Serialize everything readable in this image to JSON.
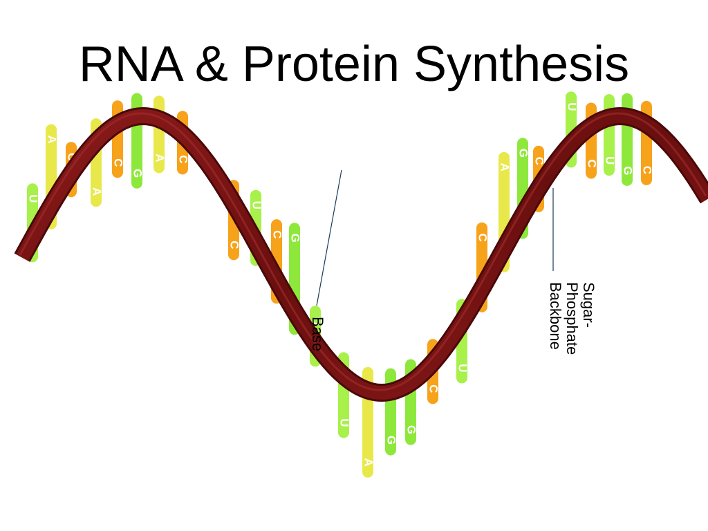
{
  "slide": {
    "title": "RNA & Protein Synthesis"
  },
  "diagram": {
    "strand_color": "#7a1414",
    "strand_edge_color": "#4a0808",
    "base_colors": {
      "A": "#e8e84a",
      "U": "#a8f04a",
      "G": "#8ee83c",
      "C": "#f7a21b"
    },
    "bases": [
      {
        "letter": "U",
        "color_key": "U"
      },
      {
        "letter": "A",
        "color_key": "A"
      },
      {
        "letter": "C",
        "color_key": "C"
      },
      {
        "letter": "A",
        "color_key": "A"
      },
      {
        "letter": "C",
        "color_key": "C"
      },
      {
        "letter": "G",
        "color_key": "G"
      },
      {
        "letter": "A",
        "color_key": "A"
      },
      {
        "letter": "C",
        "color_key": "C"
      },
      {
        "letter": "C",
        "color_key": "C"
      },
      {
        "letter": "U",
        "color_key": "U"
      },
      {
        "letter": "C",
        "color_key": "C"
      },
      {
        "letter": "G",
        "color_key": "G"
      },
      {
        "letter": "U",
        "color_key": "U"
      },
      {
        "letter": "U",
        "color_key": "U"
      },
      {
        "letter": "A",
        "color_key": "A"
      },
      {
        "letter": "G",
        "color_key": "G"
      },
      {
        "letter": "G",
        "color_key": "G"
      },
      {
        "letter": "C",
        "color_key": "C"
      },
      {
        "letter": "U",
        "color_key": "U"
      },
      {
        "letter": "C",
        "color_key": "C"
      },
      {
        "letter": "A",
        "color_key": "A"
      },
      {
        "letter": "G",
        "color_key": "G"
      },
      {
        "letter": "C",
        "color_key": "C"
      },
      {
        "letter": "U",
        "color_key": "U"
      },
      {
        "letter": "C",
        "color_key": "C"
      },
      {
        "letter": "U",
        "color_key": "U"
      },
      {
        "letter": "G",
        "color_key": "G"
      },
      {
        "letter": "C",
        "color_key": "C"
      }
    ],
    "labels": {
      "base": "Base",
      "backbone_line1": "Sugar-",
      "backbone_line2": "Phosphate",
      "backbone_line3": "Backbone"
    }
  }
}
